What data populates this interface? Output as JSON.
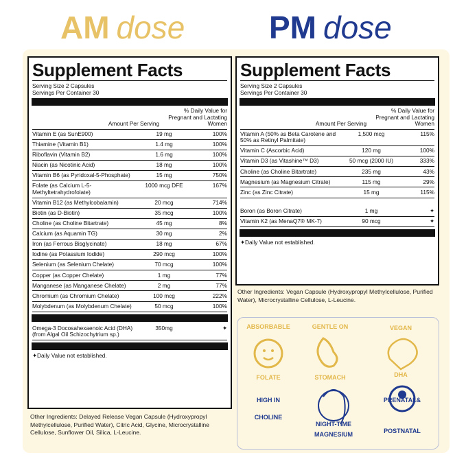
{
  "am": {
    "title": "AM",
    "title_suffix": "dose",
    "facts_title": "Supplement Facts",
    "serving_size": "Serving Size 2 Capsules",
    "servings": "Servings Per Container 30",
    "header_amount": "Amount Per Serving",
    "header_dv": "% Daily Value for Pregnant and Lactating Women",
    "rows": [
      [
        "Vitamin E (as SunE900)",
        "19 mg",
        "100%"
      ],
      [
        "Thiamine (Vitamin B1)",
        "1.4 mg",
        "100%"
      ],
      [
        "Riboflavin (Vitamin B2)",
        "1.6 mg",
        "100%"
      ],
      [
        "Niacin (as Nicotinic Acid)",
        "18 mg",
        "100%"
      ],
      [
        "Vitamin B6 (as Pyridoxal-5-Phosphate)",
        "15 mg",
        "750%"
      ],
      [
        "Folate (as Calcium L-5-Methyltetrahydrofolate)",
        "1000 mcg DFE",
        "167%"
      ],
      [
        "Vitamin B12 (as Methylcobalamin)",
        "20 mcg",
        "714%"
      ],
      [
        "Biotin (as D-Biotin)",
        "35 mcg",
        "100%"
      ],
      [
        "Choline (as Choline Bitartrate)",
        "45 mg",
        "8%"
      ],
      [
        "Calcium (as Aquamin TG)",
        "30 mg",
        "2%"
      ],
      [
        "Iron (as Ferrous Bisglycinate)",
        "18 mg",
        "67%"
      ],
      [
        "Iodine (as Potassium Iodide)",
        "290 mcg",
        "100%"
      ],
      [
        "Selenium (as Selenium Chelate)",
        "70 mcg",
        "100%"
      ],
      [
        "Copper (as Copper Chelate)",
        "1 mg",
        "77%"
      ],
      [
        "Manganese (as Manganese Chelate)",
        "2 mg",
        "77%"
      ],
      [
        "Chromium (as Chromium Chelate)",
        "100 mcg",
        "222%"
      ],
      [
        "Molybdenum (as Molybdenum Chelate)",
        "50 mcg",
        "100%"
      ]
    ],
    "extra_rows": [
      [
        "Omega-3 Docosahexaenoic Acid (DHA) (from Algal Oil Schizochytrium sp.)",
        "350mg",
        "✦"
      ]
    ],
    "footnote": "✦Daily Value not established.",
    "other_ingredients": "Other Ingredients: Delayed Release Vegan Capsule (Hydroxypropyl Methylcellulose, Purified Water), Citric Acid, Glycine, Microcrystalline Cellulose, Sunflower Oil, Silica, L-Leucine."
  },
  "pm": {
    "title": "PM",
    "title_suffix": "dose",
    "facts_title": "Supplement Facts",
    "serving_size": "Serving Size 2 Capsules",
    "servings": "Servings Per Container 30",
    "header_amount": "Amount Per Serving",
    "header_dv": "% Daily Value for Pregnant and Lactating Women",
    "rows": [
      [
        "Vitamin A (50% as Beta Carotene and 50% as Retinyl Palmitate)",
        "1,500 mcg",
        "115%"
      ],
      [
        "Vitamin C (Ascorbic Acid)",
        "120 mg",
        "100%"
      ],
      [
        "Vitamin D3 (as Vitashine™ D3)",
        "50 mcg (2000 IU)",
        "333%"
      ],
      [
        "Choline (as Choline Bitartrate)",
        "235 mg",
        "43%"
      ],
      [
        "Magnesium (as Magnesium Citrate)",
        "115 mg",
        "29%"
      ],
      [
        "Zinc (as Zinc Citrate)",
        "15 mg",
        "115%"
      ]
    ],
    "extra_rows": [
      [
        "Boron (as Boron Citrate)",
        "1 mg",
        "✦"
      ],
      [
        "Vitamin K2 (as MenaQ7® MK-7)",
        "90 mcg",
        "✦"
      ]
    ],
    "footnote": "✦Daily Value not established.",
    "other_ingredients": "Other Ingredients: Vegan Capsule (Hydroxypropyl Methylcellulose, Purified Water), Microcrystalline Cellulose, L-Leucine."
  },
  "badges": [
    {
      "top": "ABSORBABLE",
      "bottom": "FOLATE"
    },
    {
      "top": "GENTLE ON",
      "bottom": "STOMACH"
    },
    {
      "top": "VEGAN",
      "bottom": "DHA"
    },
    {
      "top": "HIGH IN",
      "bottom": "CHOLINE"
    },
    {
      "top": "NIGHT-TIME",
      "bottom": "MAGNESIUM"
    },
    {
      "top": "PRENATAL&",
      "bottom": "POSTNATAL"
    }
  ]
}
